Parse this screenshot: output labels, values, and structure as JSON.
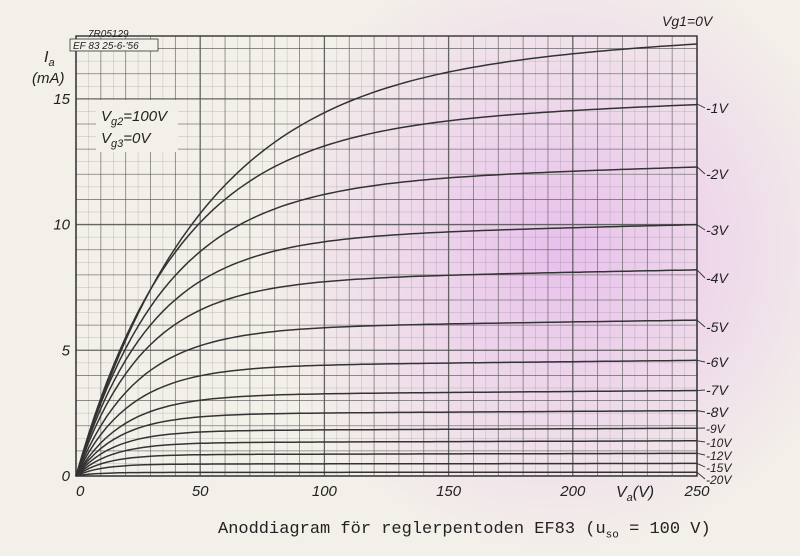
{
  "chart_data": {
    "type": "line",
    "header": {
      "ref_no": "7R05129",
      "tube_date": "EF 83  25-6-'56"
    },
    "y_axis": {
      "label_symbol": "I",
      "label_sub": "a",
      "label_unit": "(mA)",
      "range": [
        0,
        17.5
      ],
      "ticks": [
        0,
        5,
        10,
        15
      ],
      "minor_step": 0.5
    },
    "x_axis": {
      "label_symbol": "V",
      "label_sub": "a",
      "label_unit": "(V)",
      "range": [
        0,
        250
      ],
      "ticks": [
        0,
        50,
        100,
        150,
        200,
        250
      ],
      "minor_step": 5
    },
    "conditions": [
      {
        "symbol": "V",
        "sub": "g2",
        "value": "=100V"
      },
      {
        "symbol": "V",
        "sub": "g3",
        "value": "=0V"
      }
    ],
    "series": [
      {
        "name": "Vg1=0V",
        "label": "Vg1=0V",
        "i_sat": 17.3,
        "knee": 50
      },
      {
        "name": "-1V",
        "label": "-1V",
        "i_sat": 14.8,
        "knee": 40
      },
      {
        "name": "-2V",
        "label": "-2V",
        "i_sat": 12.3,
        "knee": 35
      },
      {
        "name": "-3V",
        "label": "-3V",
        "i_sat": 10.0,
        "knee": 30
      },
      {
        "name": "-4V",
        "label": "-4V",
        "i_sat": 8.2,
        "knee": 27
      },
      {
        "name": "-5V",
        "label": "-5V",
        "i_sat": 6.2,
        "knee": 24
      },
      {
        "name": "-6V",
        "label": "-6V",
        "i_sat": 4.6,
        "knee": 21
      },
      {
        "name": "-7V",
        "label": "-7V",
        "i_sat": 3.4,
        "knee": 19
      },
      {
        "name": "-8V",
        "label": "-8V",
        "i_sat": 2.6,
        "knee": 17
      },
      {
        "name": "-9V",
        "label": "-9V",
        "i_sat": 1.9,
        "knee": 15
      },
      {
        "name": "-10V",
        "label": "-10V",
        "i_sat": 1.4,
        "knee": 14
      },
      {
        "name": "-12V",
        "label": "-12V",
        "i_sat": 0.9,
        "knee": 12
      },
      {
        "name": "-15V",
        "label": "-15V",
        "i_sat": 0.5,
        "knee": 10
      },
      {
        "name": "-20V",
        "label": "-20V",
        "i_sat": 0.15,
        "knee": 8
      }
    ]
  },
  "caption": {
    "prefix": "Anoddiagram för reglerpentoden EF83 (u",
    "sub": "so",
    "suffix": " = 100 V)"
  },
  "colors": {
    "paper": "#f3efe9",
    "grid": "#555555",
    "curve": "#333333",
    "text": "#222222",
    "tint": "#e9c3ec"
  }
}
